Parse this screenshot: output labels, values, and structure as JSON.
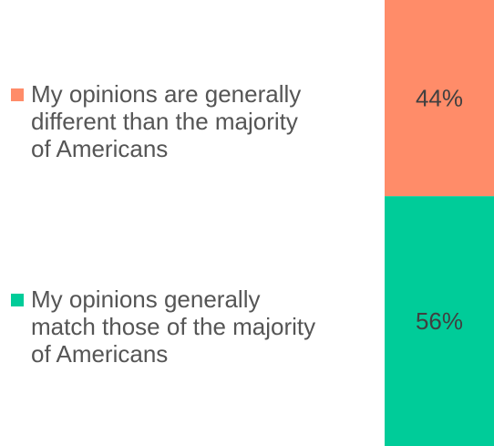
{
  "chart_data": {
    "type": "bar",
    "stacked": true,
    "orientation": "vertical",
    "series": [
      {
        "name": "My opinions are generally different than the majority of Americans",
        "values": [
          44
        ],
        "label": "44%",
        "color": "#FF8C69"
      },
      {
        "name": "My opinions generally match those of the majority of Americans",
        "values": [
          56
        ],
        "label": "56%",
        "color": "#00CC99"
      }
    ],
    "ylim": [
      0,
      100
    ],
    "legend_position": "left",
    "grid": false
  }
}
